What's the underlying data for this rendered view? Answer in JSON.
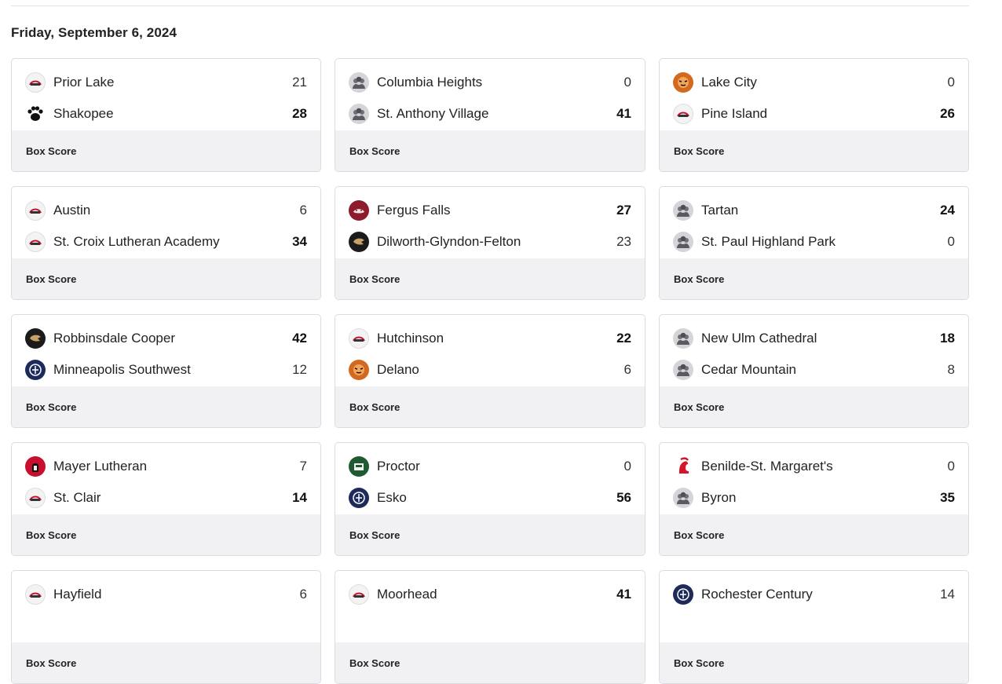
{
  "date_heading": "Friday, September 6, 2024",
  "box_score_label": "Box Score",
  "games": [
    {
      "away": {
        "name": "Prior Lake",
        "score": "21",
        "win": false,
        "logo": "lakers-wordmark-icon",
        "style": "light"
      },
      "home": {
        "name": "Shakopee",
        "score": "28",
        "win": true,
        "logo": "paw-icon",
        "style": "paw"
      }
    },
    {
      "away": {
        "name": "Columbia Heights",
        "score": "0",
        "win": false,
        "logo": "generic-team-icon",
        "style": "generic"
      },
      "home": {
        "name": "St. Anthony Village",
        "score": "41",
        "win": true,
        "logo": "generic-team-icon",
        "style": "generic"
      }
    },
    {
      "away": {
        "name": "Lake City",
        "score": "0",
        "win": false,
        "logo": "tiger-icon",
        "style": "orange"
      },
      "home": {
        "name": "Pine Island",
        "score": "26",
        "win": true,
        "logo": "panther-wordmark-icon",
        "style": "light"
      }
    },
    {
      "away": {
        "name": "Austin",
        "score": "6",
        "win": false,
        "logo": "packer-mascot-icon",
        "style": "light"
      },
      "home": {
        "name": "St. Croix Lutheran Academy",
        "score": "34",
        "win": true,
        "logo": "crusader-wordmark-icon",
        "style": "light"
      }
    },
    {
      "away": {
        "name": "Fergus Falls",
        "score": "27",
        "win": true,
        "logo": "otter-icon",
        "style": "maroon"
      },
      "home": {
        "name": "Dilworth-Glyndon-Felton",
        "score": "23",
        "win": false,
        "logo": "dgf-monogram-icon",
        "style": "dark"
      }
    },
    {
      "away": {
        "name": "Tartan",
        "score": "24",
        "win": true,
        "logo": "generic-team-icon",
        "style": "generic"
      },
      "home": {
        "name": "St. Paul Highland Park",
        "score": "0",
        "win": false,
        "logo": "generic-team-icon",
        "style": "generic"
      }
    },
    {
      "away": {
        "name": "Robbinsdale Cooper",
        "score": "42",
        "win": true,
        "logo": "hawk-icon",
        "style": "dark"
      },
      "home": {
        "name": "Minneapolis Southwest",
        "score": "12",
        "win": false,
        "logo": "laker-seal-icon",
        "style": "navy"
      }
    },
    {
      "away": {
        "name": "Hutchinson",
        "score": "22",
        "win": true,
        "logo": "tiger-icon",
        "style": "light"
      },
      "home": {
        "name": "Delano",
        "score": "6",
        "win": false,
        "logo": "tiger-icon",
        "style": "orange"
      }
    },
    {
      "away": {
        "name": "New Ulm Cathedral",
        "score": "18",
        "win": true,
        "logo": "generic-team-icon",
        "style": "generic"
      },
      "home": {
        "name": "Cedar Mountain",
        "score": "8",
        "win": false,
        "logo": "generic-team-icon",
        "style": "generic"
      }
    },
    {
      "away": {
        "name": "Mayer Lutheran",
        "score": "7",
        "win": false,
        "logo": "crusader-icon",
        "style": "red"
      },
      "home": {
        "name": "St. Clair",
        "score": "14",
        "win": true,
        "logo": "sc-monogram-icon",
        "style": "light"
      }
    },
    {
      "away": {
        "name": "Proctor",
        "score": "0",
        "win": false,
        "logo": "rail-icon",
        "style": "green"
      },
      "home": {
        "name": "Esko",
        "score": "56",
        "win": true,
        "logo": "e-monogram-icon",
        "style": "navy"
      }
    },
    {
      "away": {
        "name": "Benilde-St. Margaret's",
        "score": "0",
        "win": false,
        "logo": "spartan-helmet-icon",
        "style": "helmet"
      },
      "home": {
        "name": "Byron",
        "score": "35",
        "win": true,
        "logo": "generic-team-icon",
        "style": "generic"
      }
    },
    {
      "away": {
        "name": "Hayfield",
        "score": "6",
        "win": false,
        "logo": "viking-icon",
        "style": "light"
      },
      "home": {
        "name": "",
        "score": "",
        "win": false,
        "logo": "",
        "style": "none"
      }
    },
    {
      "away": {
        "name": "Moorhead",
        "score": "41",
        "win": true,
        "logo": "m-spud-icon",
        "style": "light"
      },
      "home": {
        "name": "",
        "score": "",
        "win": false,
        "logo": "",
        "style": "none"
      }
    },
    {
      "away": {
        "name": "Rochester Century",
        "score": "14",
        "win": false,
        "logo": "panther-head-icon",
        "style": "navy"
      },
      "home": {
        "name": "",
        "score": "",
        "win": false,
        "logo": "",
        "style": "none"
      }
    }
  ],
  "colors": {
    "card_border": "#dcdce0",
    "box_score_bg": "#f1f1f4",
    "text": "#222222"
  }
}
